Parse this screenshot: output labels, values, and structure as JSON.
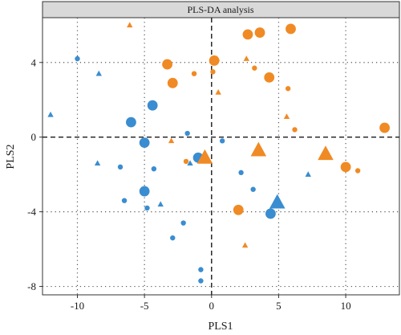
{
  "chart_data": {
    "type": "scatter",
    "title": "PLS-DA analysis",
    "xlabel": "PLS1",
    "ylabel": "PLS2",
    "xlim": [
      -12.6,
      14.0
    ],
    "ylim": [
      -8.45,
      6.4
    ],
    "xticks": [
      -10,
      -5,
      0,
      5,
      10
    ],
    "xtick_labels": [
      "-10",
      "-5",
      "0",
      "5",
      "10"
    ],
    "yticks": [
      -8,
      -4,
      0,
      4
    ],
    "ytick_labels": [
      "-8",
      "-4",
      "0",
      "4"
    ],
    "grid": "dotted at ticks",
    "reference_lines": {
      "x": 0,
      "y": 0,
      "style": "dashed"
    },
    "legend": "none",
    "colors": {
      "blue": "#3a8dd0",
      "orange": "#f08a24"
    },
    "series": [
      {
        "color": "blue",
        "points": [
          {
            "x": -10.0,
            "y": 4.2,
            "shape": "circle",
            "size": "small"
          },
          {
            "x": -8.4,
            "y": 3.4,
            "shape": "triangle",
            "size": "small"
          },
          {
            "x": -12.0,
            "y": 1.2,
            "shape": "triangle",
            "size": "small"
          },
          {
            "x": -6.0,
            "y": 0.8,
            "shape": "circle",
            "size": "medium"
          },
          {
            "x": -4.4,
            "y": 1.7,
            "shape": "circle",
            "size": "medium"
          },
          {
            "x": -5.0,
            "y": -0.3,
            "shape": "circle",
            "size": "medium"
          },
          {
            "x": -1.0,
            "y": -1.1,
            "shape": "circle",
            "size": "medium"
          },
          {
            "x": -1.8,
            "y": 0.2,
            "shape": "circle",
            "size": "small"
          },
          {
            "x": 0.8,
            "y": -0.2,
            "shape": "circle",
            "size": "small"
          },
          {
            "x": -8.5,
            "y": -1.4,
            "shape": "triangle",
            "size": "small"
          },
          {
            "x": -6.8,
            "y": -1.6,
            "shape": "circle",
            "size": "small"
          },
          {
            "x": -4.3,
            "y": -1.7,
            "shape": "circle",
            "size": "small"
          },
          {
            "x": -1.6,
            "y": -1.4,
            "shape": "triangle",
            "size": "small"
          },
          {
            "x": -5.0,
            "y": -2.9,
            "shape": "circle",
            "size": "medium"
          },
          {
            "x": -6.5,
            "y": -3.4,
            "shape": "circle",
            "size": "small"
          },
          {
            "x": -4.8,
            "y": -3.8,
            "shape": "circle",
            "size": "small"
          },
          {
            "x": -3.8,
            "y": -3.6,
            "shape": "triangle",
            "size": "small"
          },
          {
            "x": -2.1,
            "y": -4.6,
            "shape": "circle",
            "size": "small"
          },
          {
            "x": -2.9,
            "y": -5.4,
            "shape": "circle",
            "size": "small"
          },
          {
            "x": 2.2,
            "y": -1.9,
            "shape": "circle",
            "size": "small"
          },
          {
            "x": 3.1,
            "y": -2.8,
            "shape": "circle",
            "size": "small"
          },
          {
            "x": 4.4,
            "y": -4.1,
            "shape": "circle",
            "size": "medium"
          },
          {
            "x": 4.9,
            "y": -3.5,
            "shape": "triangle",
            "size": "large"
          },
          {
            "x": 7.2,
            "y": -2.0,
            "shape": "triangle",
            "size": "small"
          },
          {
            "x": -0.8,
            "y": -7.1,
            "shape": "circle",
            "size": "small"
          },
          {
            "x": -0.8,
            "y": -7.7,
            "shape": "circle",
            "size": "small"
          }
        ]
      },
      {
        "color": "orange",
        "points": [
          {
            "x": -6.1,
            "y": 6.0,
            "shape": "triangle",
            "size": "small"
          },
          {
            "x": -3.3,
            "y": 3.9,
            "shape": "circle",
            "size": "medium"
          },
          {
            "x": -2.9,
            "y": 2.9,
            "shape": "circle",
            "size": "medium"
          },
          {
            "x": -1.3,
            "y": 3.4,
            "shape": "circle",
            "size": "small"
          },
          {
            "x": 0.1,
            "y": 3.5,
            "shape": "circle",
            "size": "small"
          },
          {
            "x": 0.2,
            "y": 4.1,
            "shape": "circle",
            "size": "medium"
          },
          {
            "x": 0.4,
            "y": 4.2,
            "shape": "triangle",
            "size": "small"
          },
          {
            "x": 0.5,
            "y": 2.4,
            "shape": "triangle",
            "size": "small"
          },
          {
            "x": 2.7,
            "y": 5.5,
            "shape": "circle",
            "size": "medium"
          },
          {
            "x": 3.6,
            "y": 5.6,
            "shape": "circle",
            "size": "medium"
          },
          {
            "x": 5.9,
            "y": 5.8,
            "shape": "circle",
            "size": "medium"
          },
          {
            "x": 2.6,
            "y": 4.2,
            "shape": "triangle",
            "size": "small"
          },
          {
            "x": 3.2,
            "y": 3.7,
            "shape": "circle",
            "size": "small"
          },
          {
            "x": 4.3,
            "y": 3.2,
            "shape": "circle",
            "size": "medium"
          },
          {
            "x": 5.7,
            "y": 2.6,
            "shape": "circle",
            "size": "small"
          },
          {
            "x": 5.6,
            "y": 1.1,
            "shape": "triangle",
            "size": "small"
          },
          {
            "x": 6.2,
            "y": 0.4,
            "shape": "circle",
            "size": "small"
          },
          {
            "x": 12.9,
            "y": 0.5,
            "shape": "circle",
            "size": "medium"
          },
          {
            "x": -3.0,
            "y": -0.2,
            "shape": "triangle",
            "size": "small"
          },
          {
            "x": -1.9,
            "y": -1.3,
            "shape": "circle",
            "size": "small"
          },
          {
            "x": -0.5,
            "y": -1.1,
            "shape": "triangle",
            "size": "large"
          },
          {
            "x": 3.5,
            "y": -0.7,
            "shape": "triangle",
            "size": "large"
          },
          {
            "x": 8.5,
            "y": -0.9,
            "shape": "triangle",
            "size": "large"
          },
          {
            "x": 10.0,
            "y": -1.6,
            "shape": "circle",
            "size": "medium"
          },
          {
            "x": 10.9,
            "y": -1.8,
            "shape": "circle",
            "size": "small"
          },
          {
            "x": 2.0,
            "y": -3.9,
            "shape": "circle",
            "size": "medium"
          },
          {
            "x": 2.5,
            "y": -5.8,
            "shape": "triangle",
            "size": "small"
          }
        ]
      }
    ]
  }
}
